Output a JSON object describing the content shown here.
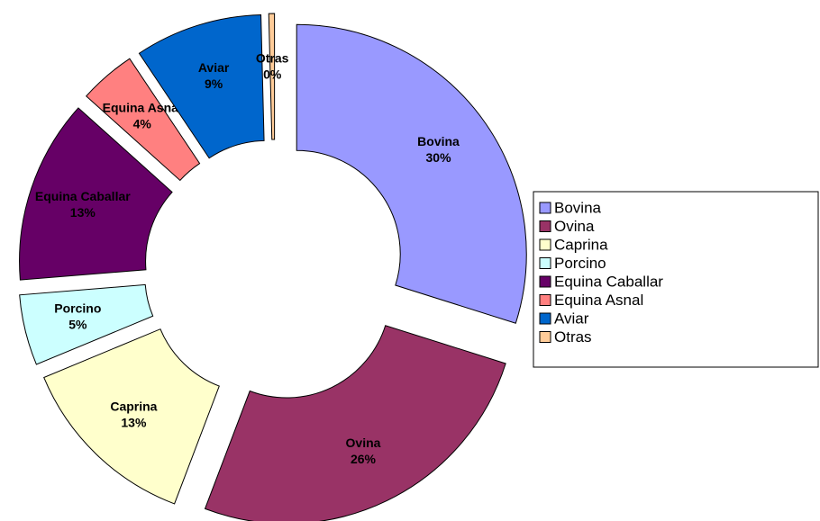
{
  "chart_data": {
    "type": "donut",
    "categories": [
      "Bovina",
      "Ovina",
      "Caprina",
      "Porcino",
      "Equina Caballar",
      "Equina Asnal",
      "Aviar",
      "Otras"
    ],
    "values": [
      30,
      26,
      13,
      5,
      13,
      4,
      9,
      0.4
    ],
    "value_labels": [
      "30%",
      "26%",
      "13%",
      "5%",
      "13%",
      "4%",
      "9%",
      "0%"
    ],
    "colors": [
      "#9999ff",
      "#993366",
      "#ffffcc",
      "#ccffff",
      "#660066",
      "#ff8080",
      "#0066cc",
      "#ffcc99"
    ],
    "legend": "right"
  }
}
